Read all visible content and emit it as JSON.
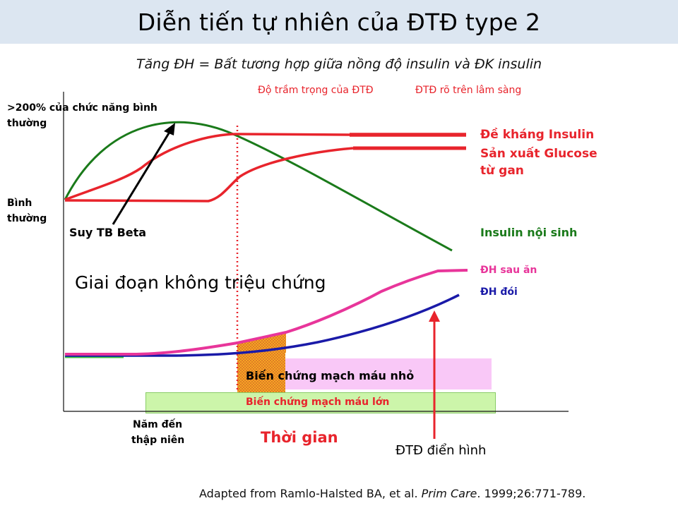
{
  "title": "Diễn tiến tự nhiên của ĐTĐ type 2",
  "subtitle": "Tăng ĐH = Bất tương hợp giữa nồng độ insulin và ĐK insulin",
  "header_labels": {
    "severity": "Độ trầm trọng của ĐTĐ",
    "clinical": "ĐTĐ rõ trên lâm sàng"
  },
  "y_axis": {
    "top_label_line1": ">200% của chức năng bình",
    "top_label_line2": "thường",
    "normal_line1": "Bình",
    "normal_line2": "thường"
  },
  "curves": {
    "insulin_resistance": "Đề kháng Insulin",
    "glucose_production_line1": "Sản xuất Glucose",
    "glucose_production_line2": "từ gan",
    "endogenous_insulin": "Insulin nội sinh",
    "postprandial_glucose": "ĐH sau ăn",
    "fasting_glucose": "ĐH đói"
  },
  "annotations": {
    "beta_cell_failure": "Suy TB Beta",
    "asymptomatic_phase": "Giai đoạn không triệu chứng",
    "microvascular": "Biến chứng mạch máu nhỏ",
    "macrovascular": "Biến chứng mạch máu lớn",
    "typical_diabetes": "ĐTĐ điển hình"
  },
  "x_axis": {
    "decades_line1": "Năm đến",
    "decades_line2": "thập niên",
    "time": "Thời gian"
  },
  "citation": {
    "prefix": "Adapted from Ramlo-Halsted BA, et al. ",
    "journal": "Prim Care",
    "suffix": ". 1999;26:771-789."
  },
  "colors": {
    "red": "#e8242c",
    "green": "#1a7a1a",
    "pink": "#e8359a",
    "blue": "#1a1aa8",
    "orange": "#f5a623"
  }
}
